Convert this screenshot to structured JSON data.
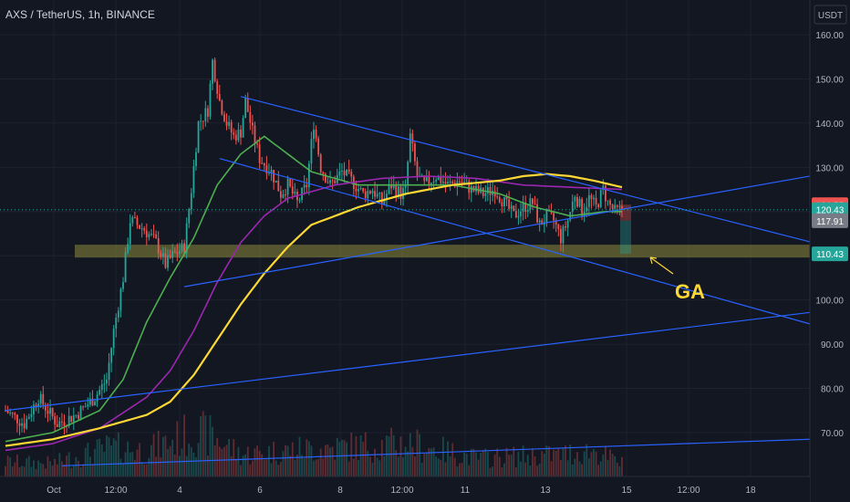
{
  "header": {
    "title": "AXS / TetherUS, 1h, BINANCE",
    "currency": "USDT"
  },
  "annotation": {
    "label": "GA"
  },
  "colors": {
    "background": "#131722",
    "up": "#26a69a",
    "down": "#ef5350",
    "grid": "#1e222d",
    "axis_text": "#b2b5be",
    "trendline": "#2962ff",
    "zone": "#8d8a3a",
    "ma_green": "#4caf50",
    "ma_purple": "#9c27b0",
    "ma_yellow": "#fdd835"
  },
  "chart_data": {
    "type": "candlestick",
    "symbol": "AXS / TetherUS",
    "interval": "1h",
    "exchange": "BINANCE",
    "y_axis": {
      "ticks": [
        70,
        80,
        90,
        100,
        110,
        120,
        130,
        140,
        150,
        160
      ],
      "tick_labels": [
        "70.00",
        "80.00",
        "90.00",
        "100.00",
        "110.00",
        "120.00",
        "130.00",
        "140.00",
        "150.00",
        "160.00"
      ],
      "range": [
        62.5,
        164.5
      ]
    },
    "x_axis": {
      "tick_labels": [
        "Oct",
        "12:00",
        "4",
        "6",
        "8",
        "12:00",
        "11",
        "13",
        "15",
        "12:00",
        "18"
      ]
    },
    "price_labels": [
      {
        "value": 121.55,
        "label": "121.55",
        "color": "#ef5350"
      },
      {
        "value": 120.43,
        "label": "120.43",
        "color": "#26a69a"
      },
      {
        "value": 117.91,
        "label": "117.91",
        "color": "#787b86"
      },
      {
        "value": 110.43,
        "label": "110.43",
        "color": "#26a69a"
      }
    ],
    "current_price": 120.43,
    "keypoints": [
      [
        0,
        75
      ],
      [
        8,
        72
      ],
      [
        14,
        78
      ],
      [
        22,
        72
      ],
      [
        30,
        74
      ],
      [
        38,
        78
      ],
      [
        43,
        82
      ],
      [
        46,
        93
      ],
      [
        50,
        105
      ],
      [
        53,
        118
      ],
      [
        56,
        117
      ],
      [
        59,
        116
      ],
      [
        64,
        113
      ],
      [
        68,
        108
      ],
      [
        71,
        110
      ],
      [
        76,
        112
      ],
      [
        79,
        125
      ],
      [
        82,
        140
      ],
      [
        86,
        143
      ],
      [
        88,
        154
      ],
      [
        91,
        145
      ],
      [
        94,
        140
      ],
      [
        97,
        137
      ],
      [
        100,
        138
      ],
      [
        102,
        145
      ],
      [
        105,
        138
      ],
      [
        108,
        132
      ],
      [
        113,
        129
      ],
      [
        117,
        124
      ],
      [
        120,
        126
      ],
      [
        124,
        122
      ],
      [
        128,
        126
      ],
      [
        131,
        140
      ],
      [
        134,
        130
      ],
      [
        138,
        126
      ],
      [
        143,
        129
      ],
      [
        147,
        127
      ],
      [
        152,
        124
      ],
      [
        156,
        125
      ],
      [
        160,
        122
      ],
      [
        164,
        126
      ],
      [
        168,
        124
      ],
      [
        170,
        125
      ],
      [
        172,
        137
      ],
      [
        175,
        128
      ],
      [
        178,
        126
      ],
      [
        183,
        128
      ],
      [
        188,
        126
      ],
      [
        193,
        127
      ],
      [
        198,
        125
      ],
      [
        203,
        124
      ],
      [
        208,
        125
      ],
      [
        212,
        122
      ],
      [
        216,
        119
      ],
      [
        220,
        121
      ],
      [
        224,
        122
      ],
      [
        227,
        117
      ],
      [
        230,
        119
      ],
      [
        233,
        118
      ],
      [
        236,
        114
      ],
      [
        239,
        118
      ],
      [
        242,
        124
      ],
      [
        245,
        120
      ],
      [
        248,
        123
      ],
      [
        251,
        121
      ],
      [
        254,
        125
      ],
      [
        256,
        122
      ],
      [
        259,
        120
      ],
      [
        262,
        120.4
      ]
    ],
    "volume_keypoints": [
      [
        0,
        20
      ],
      [
        20,
        18
      ],
      [
        45,
        40
      ],
      [
        60,
        35
      ],
      [
        80,
        60
      ],
      [
        88,
        55
      ],
      [
        100,
        30
      ],
      [
        130,
        38
      ],
      [
        172,
        45
      ],
      [
        200,
        25
      ],
      [
        235,
        30
      ],
      [
        250,
        35
      ],
      [
        262,
        18
      ]
    ],
    "moving_averages": [
      {
        "color": "#4caf50",
        "points": [
          [
            0,
            68
          ],
          [
            20,
            70
          ],
          [
            40,
            75
          ],
          [
            50,
            82
          ],
          [
            60,
            95
          ],
          [
            70,
            105
          ],
          [
            80,
            114
          ],
          [
            90,
            126
          ],
          [
            100,
            133
          ],
          [
            110,
            137
          ],
          [
            120,
            133
          ],
          [
            130,
            129
          ],
          [
            150,
            126
          ],
          [
            170,
            126
          ],
          [
            190,
            126
          ],
          [
            210,
            124
          ],
          [
            225,
            121
          ],
          [
            240,
            119
          ],
          [
            255,
            120
          ],
          [
            262,
            120
          ]
        ]
      },
      {
        "color": "#9c27b0",
        "points": [
          [
            0,
            66
          ],
          [
            20,
            67.5
          ],
          [
            40,
            71
          ],
          [
            60,
            78
          ],
          [
            70,
            84
          ],
          [
            80,
            93
          ],
          [
            90,
            104
          ],
          [
            100,
            113
          ],
          [
            110,
            119
          ],
          [
            120,
            123
          ],
          [
            140,
            126
          ],
          [
            160,
            127.5
          ],
          [
            180,
            128
          ],
          [
            200,
            127.5
          ],
          [
            220,
            126
          ],
          [
            240,
            125.5
          ],
          [
            262,
            125
          ]
        ]
      },
      {
        "color": "#fdd835",
        "points": [
          [
            0,
            67
          ],
          [
            20,
            68.5
          ],
          [
            40,
            71
          ],
          [
            60,
            74
          ],
          [
            70,
            77
          ],
          [
            80,
            83
          ],
          [
            90,
            91
          ],
          [
            100,
            99
          ],
          [
            110,
            106
          ],
          [
            120,
            112
          ],
          [
            130,
            117
          ],
          [
            150,
            121
          ],
          [
            170,
            124
          ],
          [
            190,
            126
          ],
          [
            210,
            127
          ],
          [
            220,
            128
          ],
          [
            230,
            128.5
          ],
          [
            240,
            128
          ],
          [
            250,
            127
          ],
          [
            262,
            125.5
          ]
        ]
      }
    ],
    "trendlines": [
      {
        "from": [
          100,
          146
        ],
        "to": [
          262,
          124
        ]
      },
      {
        "from": [
          91,
          132
        ],
        "to": [
          262,
          106.5
        ]
      },
      {
        "from": [
          76,
          103
        ],
        "to": [
          262,
          120.5
        ]
      },
      {
        "from": [
          0,
          75
        ],
        "to": [
          262,
          92
        ]
      },
      {
        "from": [
          24,
          62.5
        ],
        "to": [
          262,
          67
        ]
      }
    ],
    "support_zone": [
      109.6,
      112.5
    ],
    "position_box": {
      "stop": 121.55,
      "entry": 117.91,
      "target": 110.43
    }
  }
}
